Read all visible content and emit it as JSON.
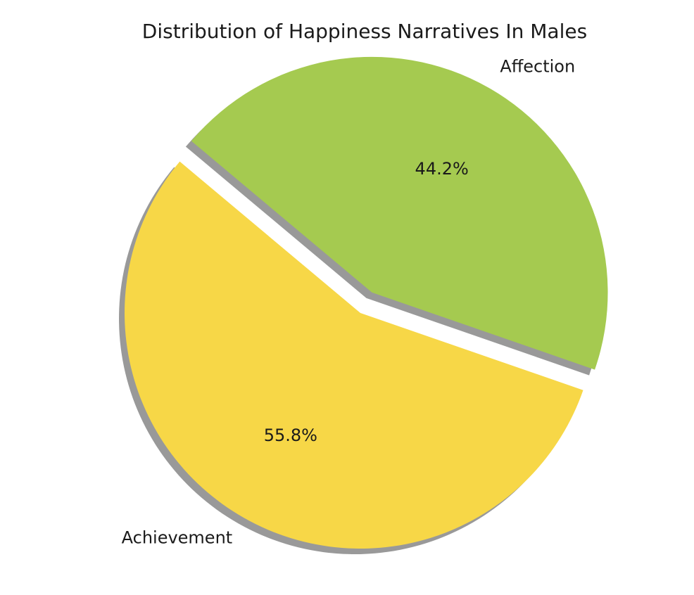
{
  "chart_data": {
    "type": "pie",
    "title": "Distribution of Happiness Narratives In Males",
    "labels": [
      "Achievement",
      "Affection"
    ],
    "values": [
      55.8,
      44.2
    ],
    "value_labels": [
      "55.8%",
      "44.2%"
    ],
    "colors": [
      "#f7d747",
      "#a5ca50"
    ],
    "exploded": [
      "",
      "Affection"
    ],
    "shadow": true,
    "legend": false
  }
}
